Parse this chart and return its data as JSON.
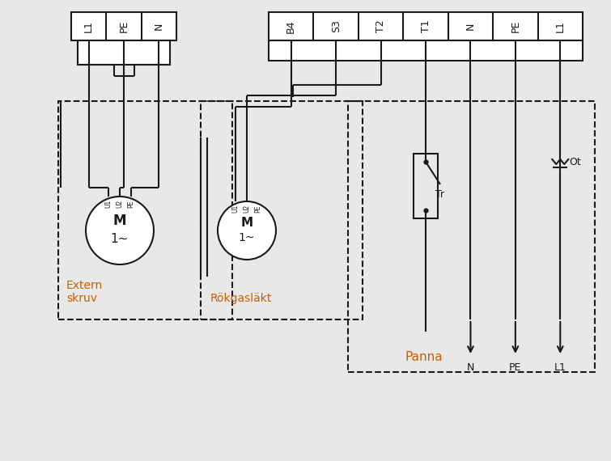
{
  "bg_color": "#e8e8e8",
  "line_color": "#1a1a1a",
  "orange_color": "#c86000",
  "connector1_labels": [
    "L1",
    "PE",
    "N"
  ],
  "connector2_labels": [
    "B4",
    "S3",
    "T2",
    "T1",
    "N",
    "PE",
    "L1"
  ],
  "label_extern_line1": "Extern",
  "label_extern_line2": "skruv",
  "label_rokgas": "Rökgasläkt",
  "label_panna": "Panna",
  "label_Tr": "Tr",
  "label_Ot": "Ot",
  "label_N_out": "N",
  "label_PE_out": "PE",
  "label_L1_out": "L1",
  "figsize": [
    7.55,
    5.7
  ],
  "dpi": 100
}
